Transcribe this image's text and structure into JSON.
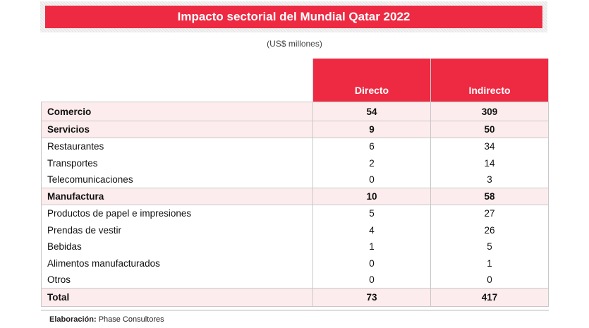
{
  "title": "Impacto sectorial del Mundial Qatar 2022",
  "subtitle": "(US$ millones)",
  "table": {
    "columns": [
      "Directo",
      "Indirecto"
    ],
    "rows": [
      {
        "label": "Comercio",
        "directo": "54",
        "indirecto": "309",
        "bold": true
      },
      {
        "label": "Servicios",
        "directo": "9",
        "indirecto": "50",
        "bold": true
      },
      {
        "label": "Restaurantes",
        "directo": "6",
        "indirecto": "34",
        "bold": false
      },
      {
        "label": "Transportes",
        "directo": "2",
        "indirecto": "14",
        "bold": false
      },
      {
        "label": "Telecomunicaciones",
        "directo": "0",
        "indirecto": "3",
        "bold": false
      },
      {
        "label": "Manufactura",
        "directo": "10",
        "indirecto": "58",
        "bold": true
      },
      {
        "label": "Productos de papel e impresiones",
        "directo": "5",
        "indirecto": "27",
        "bold": false
      },
      {
        "label": "Prendas de vestir",
        "directo": "4",
        "indirecto": "26",
        "bold": false
      },
      {
        "label": "Bebidas",
        "directo": "1",
        "indirecto": "5",
        "bold": false
      },
      {
        "label": "Alimentos manufacturados",
        "directo": "0",
        "indirecto": "1",
        "bold": false
      },
      {
        "label": "Otros",
        "directo": "0",
        "indirecto": "0",
        "bold": false
      },
      {
        "label": "Total",
        "directo": "73",
        "indirecto": "417",
        "bold": true
      }
    ]
  },
  "footer": {
    "label": "Elaboración:",
    "value": "Phase Consultores"
  },
  "colors": {
    "accent": "#ee2a43",
    "highlight_row": "#fdeced"
  }
}
